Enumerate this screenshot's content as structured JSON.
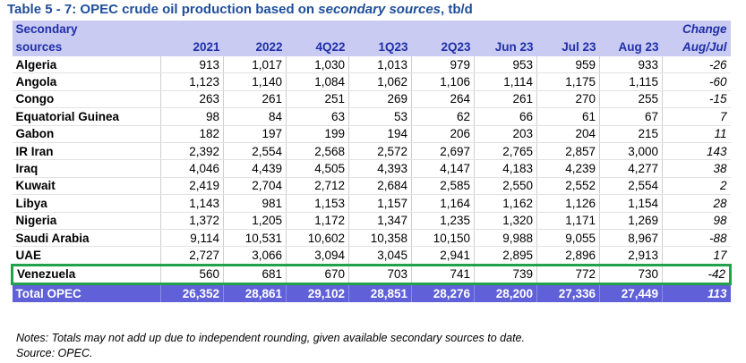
{
  "title": {
    "main": "Table 5 - 7: OPEC crude oil production based on ",
    "emph": "secondary sources",
    "suffix": ", tb/d"
  },
  "header": {
    "label_line1": "Secondary",
    "label_line2": "sources",
    "change_line1": "Change",
    "change_line2": "Aug/Jul",
    "columns": [
      "2021",
      "2022",
      "4Q22",
      "1Q23",
      "2Q23",
      "Jun 23",
      "Jul 23",
      "Aug 23"
    ]
  },
  "rows": [
    {
      "name": "Algeria",
      "values": [
        "913",
        "1,017",
        "1,030",
        "1,013",
        "979",
        "953",
        "959",
        "933"
      ],
      "change": "-26"
    },
    {
      "name": "Angola",
      "values": [
        "1,123",
        "1,140",
        "1,084",
        "1,062",
        "1,106",
        "1,114",
        "1,175",
        "1,115"
      ],
      "change": "-60"
    },
    {
      "name": "Congo",
      "values": [
        "263",
        "261",
        "251",
        "269",
        "264",
        "261",
        "270",
        "255"
      ],
      "change": "-15"
    },
    {
      "name": "Equatorial Guinea",
      "values": [
        "98",
        "84",
        "63",
        "53",
        "62",
        "66",
        "61",
        "67"
      ],
      "change": "7"
    },
    {
      "name": "Gabon",
      "values": [
        "182",
        "197",
        "199",
        "194",
        "206",
        "203",
        "204",
        "215"
      ],
      "change": "11"
    },
    {
      "name": "IR Iran",
      "values": [
        "2,392",
        "2,554",
        "2,568",
        "2,572",
        "2,697",
        "2,765",
        "2,857",
        "3,000"
      ],
      "change": "143"
    },
    {
      "name": "Iraq",
      "values": [
        "4,046",
        "4,439",
        "4,505",
        "4,393",
        "4,147",
        "4,183",
        "4,239",
        "4,277"
      ],
      "change": "38"
    },
    {
      "name": "Kuwait",
      "values": [
        "2,419",
        "2,704",
        "2,712",
        "2,684",
        "2,585",
        "2,550",
        "2,552",
        "2,554"
      ],
      "change": "2"
    },
    {
      "name": "Libya",
      "values": [
        "1,143",
        "981",
        "1,153",
        "1,157",
        "1,164",
        "1,162",
        "1,126",
        "1,154"
      ],
      "change": "28"
    },
    {
      "name": "Nigeria",
      "values": [
        "1,372",
        "1,205",
        "1,172",
        "1,347",
        "1,235",
        "1,320",
        "1,171",
        "1,269"
      ],
      "change": "98"
    },
    {
      "name": "Saudi Arabia",
      "values": [
        "9,114",
        "10,531",
        "10,602",
        "10,358",
        "10,150",
        "9,988",
        "9,055",
        "8,967"
      ],
      "change": "-88"
    },
    {
      "name": "UAE",
      "values": [
        "2,727",
        "3,066",
        "3,094",
        "3,045",
        "2,941",
        "2,895",
        "2,896",
        "2,913"
      ],
      "change": "17"
    },
    {
      "name": "Venezuela",
      "values": [
        "560",
        "681",
        "670",
        "703",
        "741",
        "739",
        "772",
        "730"
      ],
      "change": "-42",
      "highlighted": true
    }
  ],
  "total": {
    "name": "Total  OPEC",
    "values": [
      "26,352",
      "28,861",
      "29,102",
      "28,851",
      "28,276",
      "28,200",
      "27,336",
      "27,449"
    ],
    "change": "113"
  },
  "notes": {
    "line1": "Notes: Totals may not add up due to independent rounding, given available secondary sources to date.",
    "line2": "Source: OPEC."
  },
  "colors": {
    "header_bg": "#c9cbf2",
    "header_text": "#1f2fa8",
    "total_bg": "#6060d9",
    "highlight_border": "#21a24a",
    "title_text": "#1f4e9a"
  }
}
